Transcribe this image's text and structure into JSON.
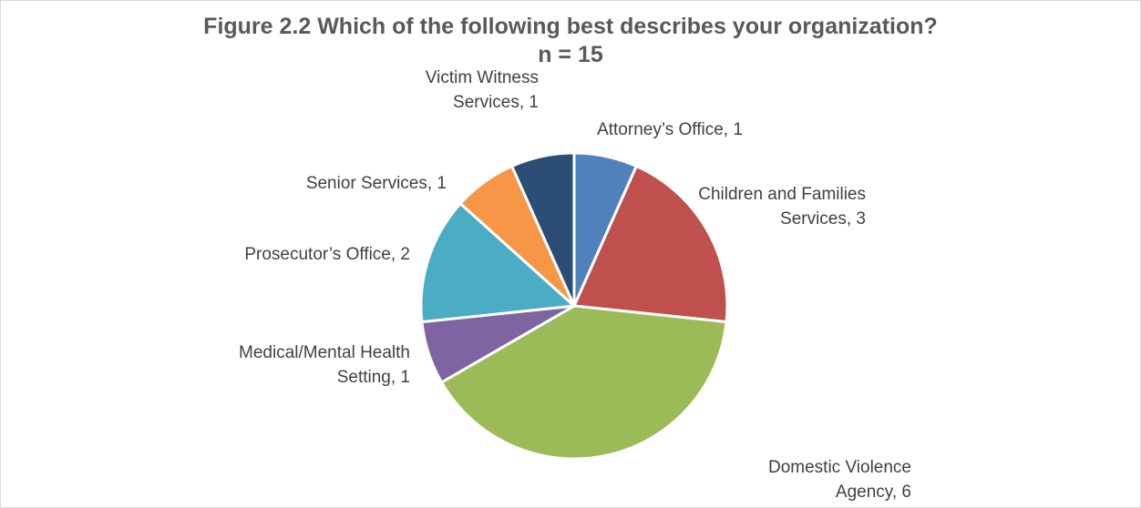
{
  "chart_data": {
    "type": "pie",
    "title": "Figure 2.2 Which of the following best describes your organization?",
    "subtitle": "n = 15",
    "slices": [
      {
        "category": "Attorney’s Office",
        "value": 1,
        "color": "#4f81bd",
        "label_lines": [
          "Attorney’s Office, 1"
        ]
      },
      {
        "category": "Children and Families Services",
        "value": 3,
        "color": "#c0504d",
        "label_lines": [
          "Children and Families",
          "Services, 3"
        ]
      },
      {
        "category": "Domestic Violence Agency",
        "value": 6,
        "color": "#9bbb59",
        "label_lines": [
          "Domestic Violence",
          "Agency, 6"
        ]
      },
      {
        "category": "Medical/Mental Health Setting",
        "value": 1,
        "color": "#8064a2",
        "label_lines": [
          "Medical/Mental Health",
          "Setting, 1"
        ]
      },
      {
        "category": "Prosecutor’s Office",
        "value": 2,
        "color": "#4bacc6",
        "label_lines": [
          "Prosecutor’s Office, 2"
        ]
      },
      {
        "category": "Senior Services",
        "value": 1,
        "color": "#f79646",
        "label_lines": [
          "Senior Services, 1"
        ]
      },
      {
        "category": "Victim Witness Services",
        "value": 1,
        "color": "#2c4d75",
        "label_lines": [
          "Victim Witness",
          "Services, 1"
        ]
      }
    ],
    "legend": "none"
  }
}
